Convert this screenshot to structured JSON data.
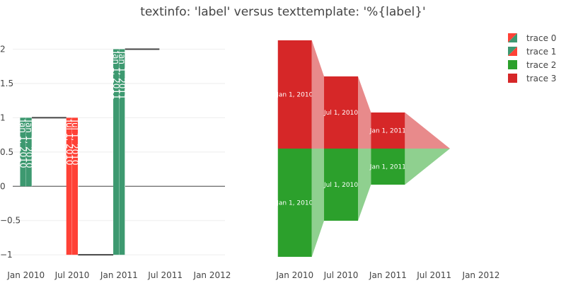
{
  "title": "textinfo: 'label' versus texttemplate: '%{label}'",
  "chart_data": [
    {
      "type": "waterfall",
      "xaxis": {
        "type": "date",
        "range": [
          "2009-11-10",
          "2012-02-20"
        ],
        "tick_labels": [
          "Jan 2010",
          "Jul 2010",
          "Jan 2011",
          "Jul 2011",
          "Jan 2012"
        ]
      },
      "yaxis": {
        "range": [
          -1.05,
          2.15
        ],
        "ticks": [
          2,
          1.5,
          1,
          0.5,
          0,
          -0.5,
          -1
        ],
        "tick_labels": [
          "2",
          "1.5",
          "1",
          "0.5",
          "0",
          "−0.5",
          "−1"
        ]
      },
      "grid": true,
      "bars": [
        {
          "x": "2010-01-01",
          "trace": 1,
          "base": 0,
          "value": 1,
          "color": "#3d9970",
          "label": "Jan 1, 2010"
        },
        {
          "x": "2010-01-01",
          "trace": 2,
          "base": 0,
          "value": 1,
          "color": "#3d9970",
          "label": "Jan 1, 2010"
        },
        {
          "x": "2010-07-01",
          "trace": 1,
          "base": 1,
          "value": -2,
          "color": "#ff4136",
          "label": "Jul 1, 2010"
        },
        {
          "x": "2010-07-01",
          "trace": 2,
          "base": 1,
          "value": -2,
          "color": "#ff4136",
          "label": "Jul 1, 2010"
        },
        {
          "x": "2011-01-01",
          "trace": 1,
          "base": -1,
          "value": 3,
          "color": "#3d9970",
          "label": "Jan 1, 2011"
        },
        {
          "x": "2011-01-01",
          "trace": 2,
          "base": -1,
          "value": 3,
          "color": "#3d9970",
          "label": "Jan 1, 2011"
        }
      ]
    },
    {
      "type": "funnel",
      "xaxis": {
        "type": "date",
        "tick_labels": [
          "Jan 2010",
          "Jul 2010",
          "Jan 2011",
          "Jul 2011",
          "Jan 2012"
        ]
      },
      "series": [
        {
          "name": "trace 3",
          "color": "#d62728",
          "connector_color": "#e88a8b",
          "stages": [
            {
              "label": "Jan 1, 2010",
              "value": 3
            },
            {
              "label": "Jul 1, 2010",
              "value": 2
            },
            {
              "label": "Jan 1, 2011",
              "value": 1
            }
          ]
        },
        {
          "name": "trace 2",
          "color": "#2ca02c",
          "connector_color": "#8fd08f",
          "stages": [
            {
              "label": "Jan 1, 2010",
              "value": 3
            },
            {
              "label": "Jul 1, 2010",
              "value": 2
            },
            {
              "label": "Jan 1, 2011",
              "value": 1
            }
          ]
        }
      ]
    }
  ],
  "legend": {
    "position": "top-right",
    "items": [
      {
        "name": "trace 0",
        "colors": [
          "#ff4136",
          "#3d9970"
        ]
      },
      {
        "name": "trace 1",
        "colors": [
          "#3d9970",
          "#ff4136"
        ]
      },
      {
        "name": "trace 2",
        "colors": [
          "#2ca02c"
        ]
      },
      {
        "name": "trace 3",
        "colors": [
          "#d62728"
        ]
      }
    ]
  }
}
